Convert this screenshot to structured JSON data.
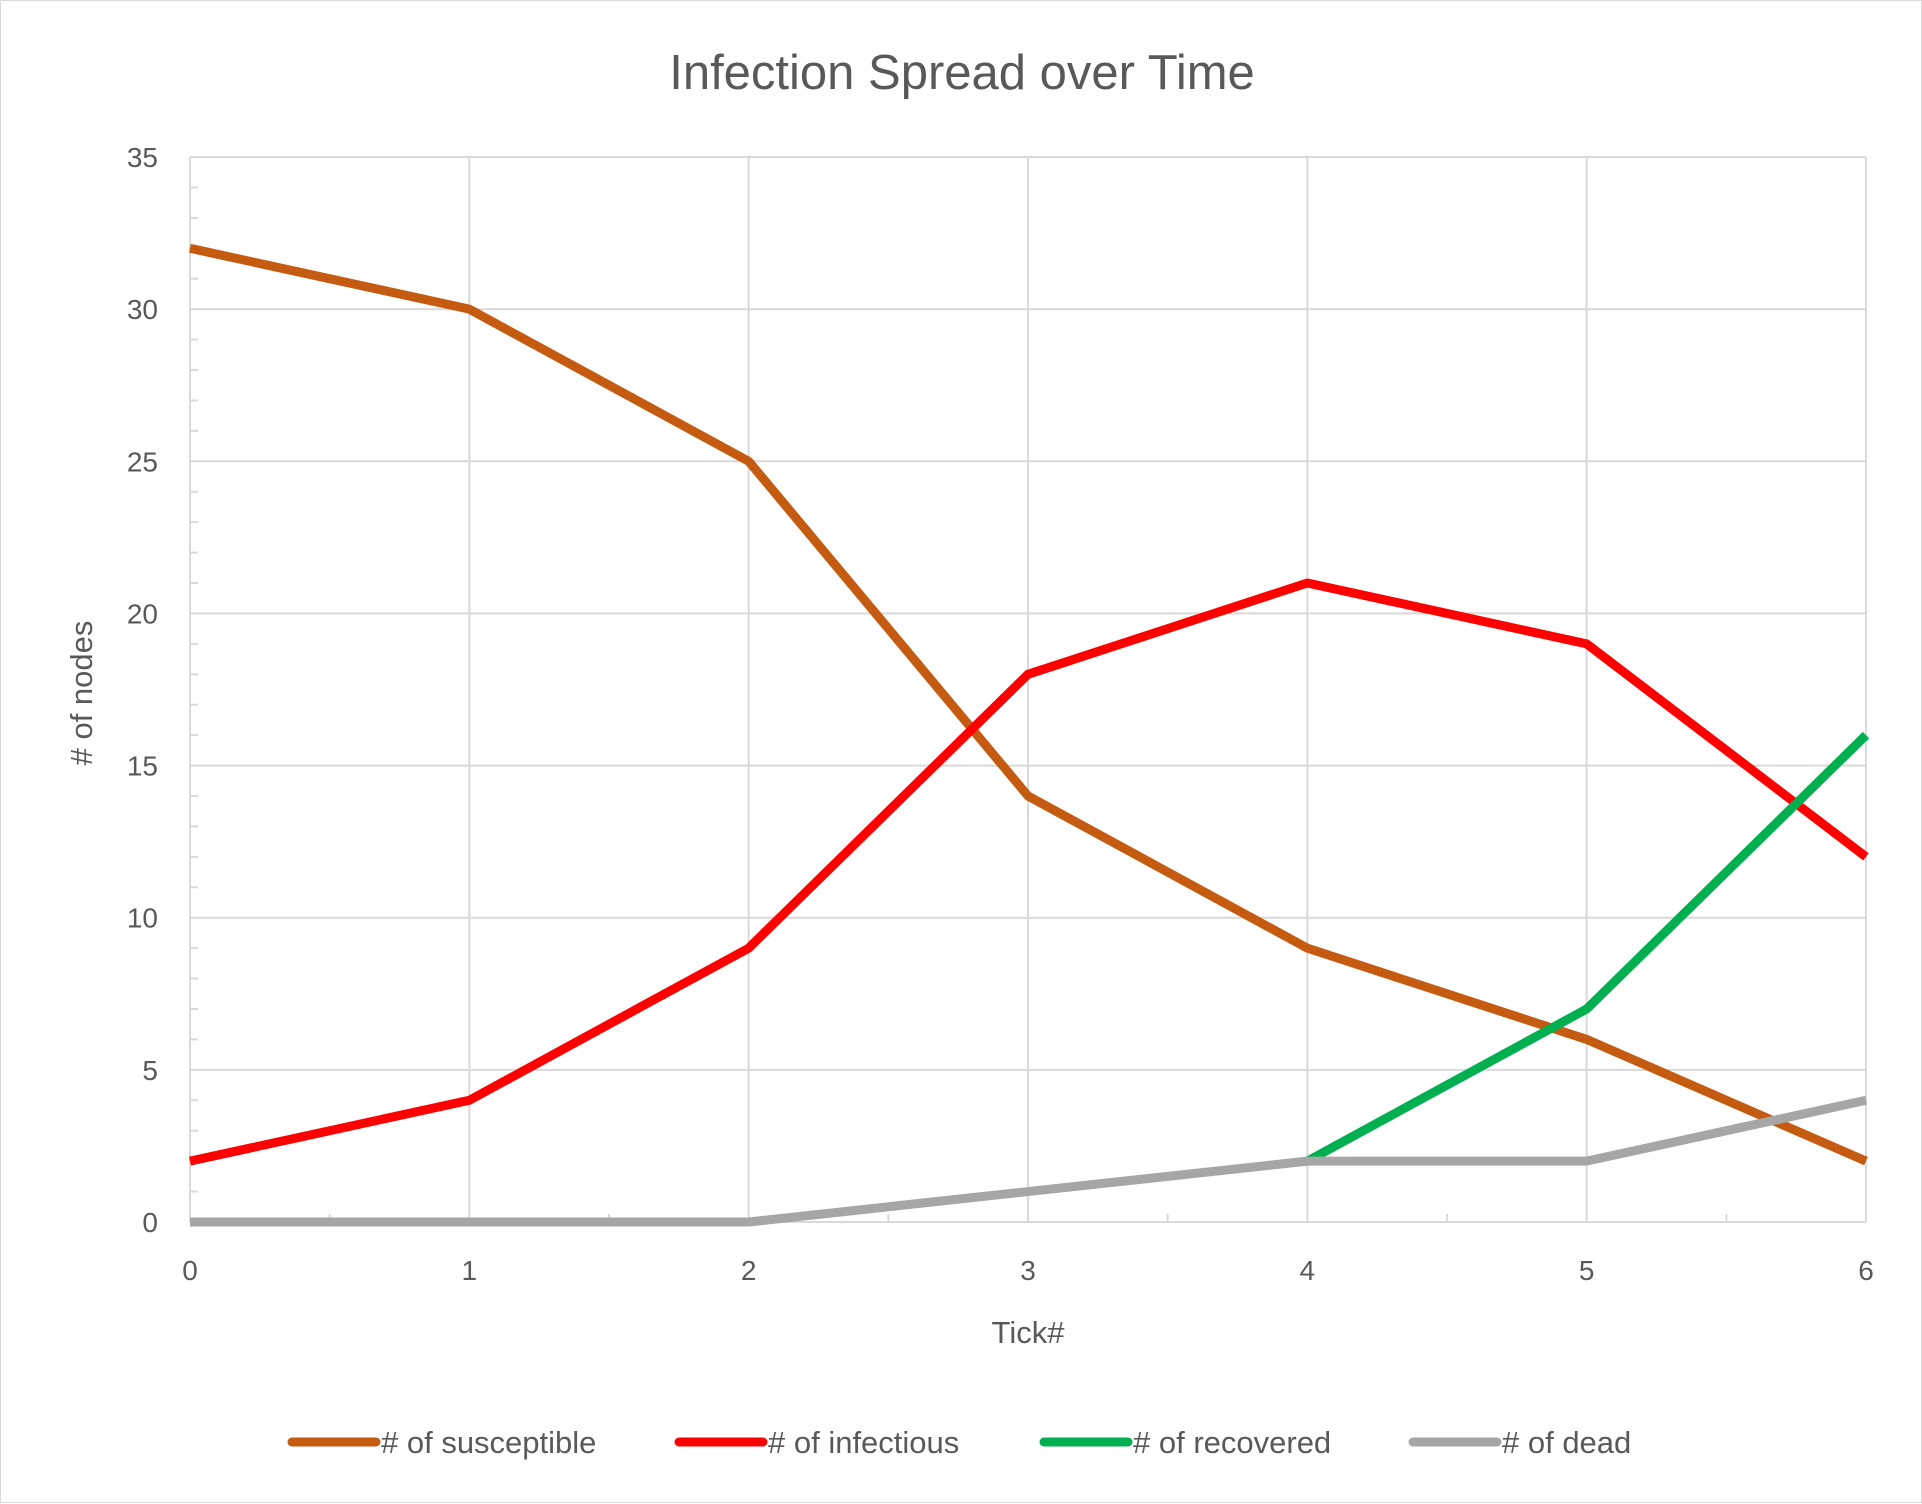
{
  "chart_data": {
    "type": "line",
    "title": "Infection Spread over Time",
    "xlabel": "Tick#",
    "ylabel": "# of nodes",
    "x": [
      0,
      1,
      2,
      3,
      4,
      5,
      6
    ],
    "xlim": [
      0,
      6
    ],
    "ylim": [
      0,
      35
    ],
    "y_ticks": [
      0,
      5,
      10,
      15,
      20,
      25,
      30,
      35
    ],
    "x_ticks": [
      0,
      1,
      2,
      3,
      4,
      5,
      6
    ],
    "grid": true,
    "legend_position": "bottom",
    "series": [
      {
        "name": "# of susceptible",
        "color": "#C55A11",
        "values": [
          32,
          30,
          25,
          14,
          9,
          6,
          2
        ]
      },
      {
        "name": "# of infectious",
        "color": "#FF0000",
        "values": [
          2,
          4,
          9,
          18,
          21,
          19,
          12
        ]
      },
      {
        "name": "# of recovered",
        "color": "#00B050",
        "values": [
          null,
          null,
          null,
          null,
          2,
          7,
          16
        ]
      },
      {
        "name": "# of dead",
        "color": "#A6A6A6",
        "values": [
          0,
          0,
          0,
          1,
          2,
          2,
          4
        ]
      }
    ]
  }
}
